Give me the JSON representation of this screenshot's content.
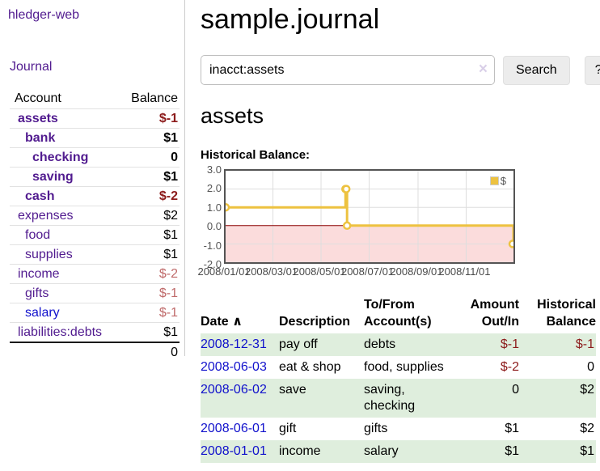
{
  "app": {
    "brand": "hledger-web",
    "nav_journal": "Journal"
  },
  "sidebar": {
    "headers": {
      "account": "Account",
      "balance": "Balance"
    },
    "accounts": [
      {
        "label": "assets",
        "level": 1,
        "bold": true,
        "link_color": "purple",
        "balance": "$-1",
        "balance_class": "neg"
      },
      {
        "label": "bank",
        "level": 2,
        "bold": true,
        "link_color": "purple",
        "balance": "$1",
        "balance_class": "pos"
      },
      {
        "label": "checking",
        "level": 3,
        "bold": true,
        "link_color": "purple",
        "balance": "0",
        "balance_class": "pos"
      },
      {
        "label": "saving",
        "level": 3,
        "bold": true,
        "link_color": "purple",
        "balance": "$1",
        "balance_class": "pos"
      },
      {
        "label": "cash",
        "level": 2,
        "bold": true,
        "link_color": "purple",
        "balance": "$-2",
        "balance_class": "neg"
      },
      {
        "label": "expenses",
        "level": 1,
        "bold": false,
        "link_color": "purple",
        "balance": "$2",
        "balance_class": "pos"
      },
      {
        "label": "food",
        "level": 2,
        "bold": false,
        "link_color": "purple",
        "balance": "$1",
        "balance_class": "pos"
      },
      {
        "label": "supplies",
        "level": 2,
        "bold": false,
        "link_color": "purple",
        "balance": "$1",
        "balance_class": "pos"
      },
      {
        "label": "income",
        "level": 1,
        "bold": false,
        "link_color": "purple",
        "balance": "$-2",
        "balance_class": "neg-faded"
      },
      {
        "label": "gifts",
        "level": 2,
        "bold": false,
        "link_color": "purple",
        "balance": "$-1",
        "balance_class": "neg-faded"
      },
      {
        "label": "salary",
        "level": 2,
        "bold": false,
        "link_color": "blue",
        "balance": "$-1",
        "balance_class": "neg-faded"
      },
      {
        "label": "liabilities:debts",
        "level": 1,
        "bold": false,
        "link_color": "purple",
        "balance": "$1",
        "balance_class": "pos"
      }
    ],
    "total": "0"
  },
  "header": {
    "title": "sample.journal"
  },
  "search": {
    "value": "inacct:assets",
    "clear_icon": "×",
    "search_label": "Search",
    "help_label": "?"
  },
  "main": {
    "account_heading": "assets",
    "chart_label": "Historical Balance:"
  },
  "chart_data": {
    "type": "line",
    "title": "Historical Balance",
    "step": true,
    "x_range": [
      "2008-01-01",
      "2008-12-31"
    ],
    "ylim": [
      -2,
      3
    ],
    "series": [
      {
        "name": "$",
        "color": "#edc240",
        "points": [
          [
            "2008-01-01",
            1
          ],
          [
            "2008-06-01",
            2
          ],
          [
            "2008-06-02",
            2
          ],
          [
            "2008-06-03",
            0
          ],
          [
            "2008-12-31",
            -1
          ]
        ]
      }
    ],
    "x_ticks": [
      "2008/01/01",
      "2008/03/01",
      "2008/05/01",
      "2008/07/01",
      "2008/09/01",
      "2008/11/01"
    ],
    "y_ticks": [
      "3.0",
      "2.0",
      "1.0",
      "0.0",
      "-1.0",
      "-2.0"
    ],
    "grid": true,
    "zero_line_color": "#8b0000",
    "negative_region_color": "#fbdcdc",
    "legend": {
      "label": "$",
      "position": "top-right"
    }
  },
  "transactions": {
    "headers": {
      "date": "Date",
      "sort_icon": "∧",
      "description": "Description",
      "accounts": "To/From Account(s)",
      "amount": "Amount Out/In",
      "balance": "Historical Balance"
    },
    "rows": [
      {
        "date": "2008-12-31",
        "description": "pay off",
        "accounts": "debts",
        "amount": "$-1",
        "amount_class": "neg",
        "balance": "$-1",
        "balance_class": "neg"
      },
      {
        "date": "2008-06-03",
        "description": "eat & shop",
        "accounts": "food, supplies",
        "amount": "$-2",
        "amount_class": "neg",
        "balance": "0",
        "balance_class": "pos"
      },
      {
        "date": "2008-06-02",
        "description": "save",
        "accounts": "saving, checking",
        "amount": "0",
        "amount_class": "pos",
        "balance": "$2",
        "balance_class": "pos"
      },
      {
        "date": "2008-06-01",
        "description": "gift",
        "accounts": "gifts",
        "amount": "$1",
        "amount_class": "pos",
        "balance": "$2",
        "balance_class": "pos"
      },
      {
        "date": "2008-01-01",
        "description": "income",
        "accounts": "salary",
        "amount": "$1",
        "amount_class": "pos",
        "balance": "$1",
        "balance_class": "pos"
      }
    ]
  }
}
